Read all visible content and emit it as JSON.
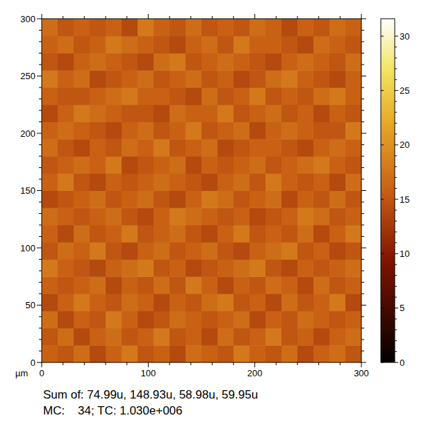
{
  "chart_data": {
    "type": "heatmap",
    "xlabel": "µm",
    "caption": [
      "Sum of: 74.99u, 148.93u, 58.98u, 59.95u",
      "MC:    34; TC: 1.030e+006"
    ],
    "xlim": [
      0,
      300
    ],
    "ylim": [
      0,
      300
    ],
    "xticks": [
      0,
      100,
      200,
      300
    ],
    "yticks": [
      0,
      50,
      100,
      150,
      200,
      250,
      300
    ],
    "colorbar": {
      "range": [
        0,
        31.6
      ],
      "ticks": [
        0,
        5,
        10,
        15,
        20,
        25,
        30
      ]
    },
    "cells": [
      [
        16,
        15,
        17,
        14,
        16,
        18,
        15,
        16,
        14,
        17,
        16,
        15,
        18,
        16,
        15,
        17,
        14,
        16,
        17,
        15
      ],
      [
        15,
        17,
        14,
        16,
        17,
        15,
        16,
        18,
        15,
        16,
        14,
        17,
        15,
        16,
        18,
        15,
        16,
        14,
        16,
        17
      ],
      [
        17,
        14,
        16,
        15,
        18,
        16,
        14,
        15,
        17,
        16,
        15,
        16,
        17,
        14,
        16,
        15,
        17,
        16,
        15,
        16
      ],
      [
        14,
        16,
        18,
        16,
        15,
        17,
        16,
        14,
        16,
        15,
        17,
        18,
        15,
        16,
        14,
        17,
        15,
        16,
        18,
        14
      ],
      [
        16,
        15,
        16,
        17,
        14,
        16,
        15,
        17,
        15,
        18,
        16,
        14,
        16,
        15,
        17,
        16,
        14,
        17,
        15,
        16
      ],
      [
        18,
        16,
        15,
        14,
        16,
        17,
        18,
        15,
        16,
        14,
        15,
        16,
        17,
        18,
        15,
        14,
        16,
        15,
        16,
        17
      ],
      [
        15,
        17,
        16,
        18,
        15,
        14,
        16,
        17,
        15,
        16,
        17,
        15,
        14,
        16,
        17,
        18,
        15,
        16,
        14,
        15
      ],
      [
        16,
        14,
        17,
        15,
        16,
        18,
        15,
        16,
        17,
        15,
        14,
        16,
        18,
        15,
        16,
        15,
        17,
        14,
        16,
        18
      ],
      [
        17,
        16,
        15,
        16,
        17,
        15,
        14,
        16,
        18,
        17,
        16,
        15,
        16,
        14,
        15,
        16,
        18,
        17,
        15,
        16
      ],
      [
        14,
        15,
        16,
        17,
        15,
        16,
        17,
        15,
        14,
        16,
        18,
        17,
        15,
        16,
        17,
        14,
        16,
        15,
        17,
        15
      ],
      [
        16,
        18,
        15,
        14,
        16,
        15,
        16,
        17,
        16,
        15,
        14,
        16,
        17,
        15,
        18,
        16,
        15,
        16,
        14,
        17
      ],
      [
        15,
        16,
        17,
        16,
        18,
        14,
        15,
        16,
        17,
        14,
        16,
        15,
        16,
        17,
        15,
        16,
        17,
        18,
        16,
        15
      ],
      [
        17,
        15,
        14,
        16,
        15,
        17,
        16,
        18,
        15,
        16,
        17,
        14,
        15,
        16,
        16,
        15,
        14,
        16,
        17,
        16
      ],
      [
        16,
        17,
        16,
        15,
        14,
        16,
        17,
        15,
        16,
        18,
        15,
        16,
        17,
        14,
        16,
        17,
        16,
        15,
        15,
        18
      ],
      [
        14,
        16,
        18,
        17,
        16,
        15,
        15,
        14,
        17,
        16,
        16,
        18,
        15,
        16,
        17,
        15,
        16,
        14,
        16,
        15
      ],
      [
        16,
        15,
        15,
        16,
        17,
        18,
        16,
        16,
        15,
        14,
        17,
        15,
        16,
        18,
        15,
        16,
        15,
        17,
        18,
        16
      ],
      [
        18,
        16,
        17,
        14,
        15,
        16,
        17,
        15,
        16,
        17,
        15,
        16,
        14,
        15,
        17,
        18,
        16,
        15,
        14,
        16
      ],
      [
        15,
        14,
        16,
        17,
        16,
        15,
        14,
        17,
        18,
        15,
        16,
        17,
        16,
        15,
        14,
        16,
        17,
        16,
        15,
        17
      ],
      [
        16,
        17,
        15,
        16,
        18,
        17,
        16,
        15,
        14,
        16,
        17,
        15,
        18,
        16,
        16,
        15,
        14,
        17,
        16,
        15
      ],
      [
        17,
        15,
        16,
        15,
        16,
        14,
        18,
        16,
        15,
        17,
        15,
        16,
        15,
        17,
        16,
        14,
        16,
        15,
        17,
        16
      ]
    ]
  }
}
